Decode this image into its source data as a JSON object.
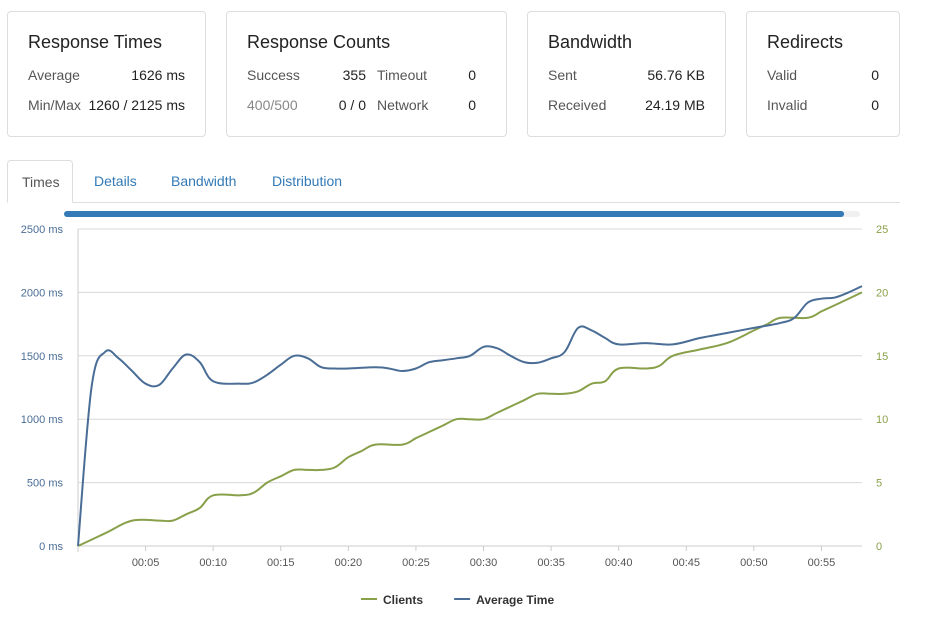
{
  "cards": {
    "response_times": {
      "title": "Response Times",
      "average_label": "Average",
      "average_value": "1626 ms",
      "minmax_label": "Min/Max",
      "minmax_value": "1260 / 2125 ms"
    },
    "response_counts": {
      "title": "Response Counts",
      "success_label": "Success",
      "success_value": "355",
      "timeout_label": "Timeout",
      "timeout_value": "0",
      "err_label": "400/500",
      "err_value": "0 / 0",
      "network_label": "Network",
      "network_value": "0"
    },
    "bandwidth": {
      "title": "Bandwidth",
      "sent_label": "Sent",
      "sent_value": "56.76 KB",
      "received_label": "Received",
      "received_value": "24.19 MB"
    },
    "redirects": {
      "title": "Redirects",
      "valid_label": "Valid",
      "valid_value": "0",
      "invalid_label": "Invalid",
      "invalid_value": "0"
    }
  },
  "tabs": [
    "Times",
    "Details",
    "Bandwidth",
    "Distribution"
  ],
  "progress": {
    "fraction": 0.98,
    "color": "#337ab7"
  },
  "colors": {
    "average_time": "#4a6d96",
    "clients": "#89a04a",
    "grid": "#d8d8d8",
    "axis": "#cccccc"
  },
  "chart_data": {
    "type": "line",
    "x_ticks": [
      "00:05",
      "00:10",
      "00:15",
      "00:20",
      "00:25",
      "00:30",
      "00:35",
      "00:40",
      "00:45",
      "00:50",
      "00:55"
    ],
    "y_left_ticks": [
      "0 ms",
      "500 ms",
      "1000 ms",
      "1500 ms",
      "2000 ms",
      "2500 ms"
    ],
    "y_right_ticks": [
      "0",
      "5",
      "10",
      "15",
      "20",
      "25"
    ],
    "xlim": [
      0,
      58
    ],
    "ylim_left": [
      0,
      2500
    ],
    "ylim_right": [
      0,
      25
    ],
    "grid": true,
    "legend_position": "bottom",
    "series": [
      {
        "name": "Average Time",
        "axis": "left",
        "color": "#4a6d96",
        "x": [
          0,
          1,
          2,
          3,
          4,
          5,
          6,
          7,
          8,
          9,
          10,
          12,
          13,
          14,
          15,
          16,
          17,
          18,
          19,
          20,
          22,
          23,
          24,
          25,
          26,
          27,
          28,
          29,
          30,
          31,
          32,
          33,
          34,
          35,
          36,
          37,
          38,
          39,
          40,
          42,
          44,
          46,
          48,
          50,
          52,
          53,
          54,
          55,
          56,
          57,
          58
        ],
        "y": [
          0,
          1250,
          1530,
          1480,
          1380,
          1280,
          1270,
          1400,
          1510,
          1450,
          1300,
          1280,
          1290,
          1350,
          1430,
          1500,
          1480,
          1410,
          1400,
          1400,
          1410,
          1400,
          1380,
          1400,
          1450,
          1465,
          1480,
          1500,
          1570,
          1560,
          1500,
          1450,
          1445,
          1480,
          1530,
          1720,
          1700,
          1640,
          1590,
          1600,
          1590,
          1640,
          1680,
          1720,
          1760,
          1800,
          1920,
          1950,
          1960,
          2000,
          2050
        ]
      },
      {
        "name": "Clients",
        "axis": "right",
        "color": "#89a04a",
        "x": [
          0,
          2,
          4,
          6,
          7,
          8,
          9,
          10,
          12,
          13,
          14,
          15,
          16,
          17,
          18,
          19,
          20,
          21,
          22,
          24,
          25,
          26,
          27,
          28,
          29,
          30,
          31,
          32,
          33,
          34,
          35,
          36,
          37,
          38,
          39,
          40,
          42,
          43,
          44,
          46,
          48,
          50,
          51,
          52,
          54,
          55,
          56,
          58
        ],
        "y": [
          0,
          1,
          2,
          2,
          2,
          2.5,
          3,
          4,
          4,
          4.2,
          5,
          5.5,
          6,
          6,
          6,
          6.2,
          7,
          7.5,
          8,
          8,
          8.5,
          9,
          9.5,
          10,
          10,
          10,
          10.5,
          11,
          11.5,
          12,
          12,
          12,
          12.2,
          12.8,
          13,
          14,
          14,
          14.2,
          15,
          15.5,
          16,
          17,
          17.5,
          18,
          18,
          18.5,
          19,
          20
        ]
      }
    ]
  }
}
